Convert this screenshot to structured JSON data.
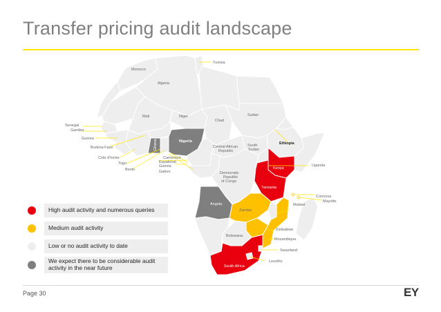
{
  "title": "Transfer pricing audit landscape",
  "colors": {
    "accent": "#ffe600",
    "high": "#e8000e",
    "medium": "#ffc000",
    "low": "#eeeeee",
    "expected": "#7f7f7f"
  },
  "legend": [
    {
      "label": "High audit activity and numerous queries",
      "color": "#e8000e"
    },
    {
      "label": "Medium audit activity",
      "color": "#ffc000"
    },
    {
      "label": "Low or no audit activity to date",
      "color": "#eeeeee"
    },
    {
      "label": "We expect there to be considerable audit activity in the near future",
      "color": "#7f7f7f"
    }
  ],
  "countries": {
    "tunisia": "Tunisia",
    "morocco": "Morocco",
    "algeria": "Algeria",
    "mali": "Mali",
    "niger": "Niger",
    "chad": "Chad",
    "sudan": "Sudan",
    "senegal": "Senegal",
    "gambia": "Gambia",
    "guinea": "Guinea",
    "burkina_faso": "Burkina Faso",
    "cote_divoire": "Cote d'Ivoire",
    "togo": "Togo",
    "benin": "Benin",
    "ghana": "Ghana",
    "nigeria": "Nigeria",
    "cameroon": "Cameroon",
    "equatorial_guinea": "Equatorial Guinea",
    "gabon": "Gabon",
    "central_african_republic": "Central African Republic",
    "south_sudan": "South Sudan",
    "ethiopia": "Ethiopia",
    "uganda": "Uganda",
    "kenya": "Kenya",
    "drc": "Democratic Republic of Congo",
    "tanzania": "Tanzania",
    "comoros": "Comoros",
    "mayotte": "Mayotte",
    "malawi": "Malawi",
    "angola": "Angola",
    "zambia": "Zambia",
    "zimbabwe": "Zimbabwe",
    "mozambique": "Mozambique",
    "botswana": "Botswana",
    "swaziland": "Swaziland",
    "lesotho": "Lesotho",
    "south_africa": "South Africa"
  },
  "footer": {
    "page": "Page 30",
    "logo": "EY"
  }
}
